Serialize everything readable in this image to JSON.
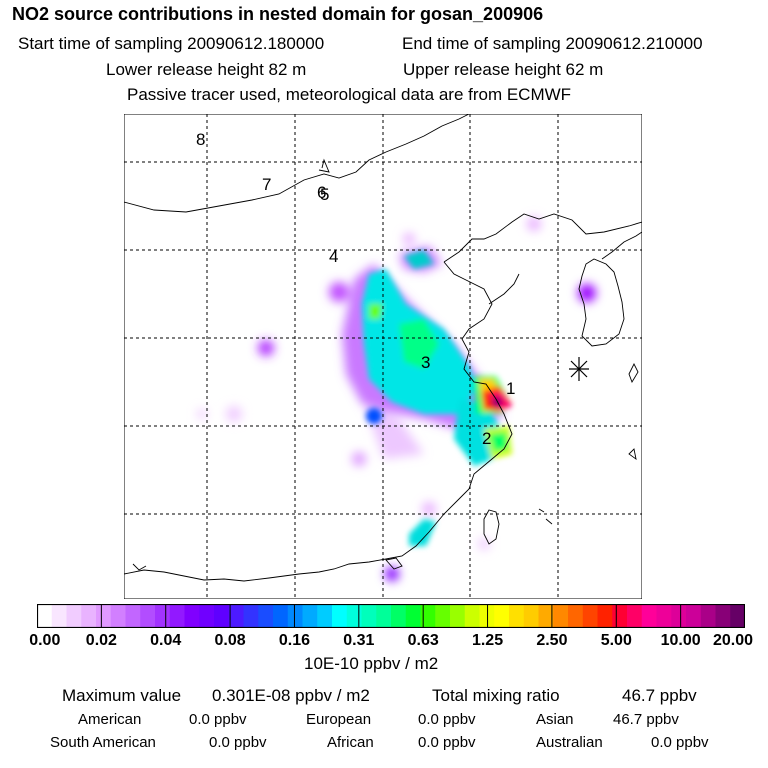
{
  "header": {
    "title": "NO2 source contributions in nested domain for gosan_200906",
    "start_time": "Start time of sampling 20090612.180000",
    "end_time": "End time of sampling 20090612.210000",
    "lower_release": "Lower release height   82 m",
    "upper_release": "Upper release height   62 m",
    "note": "Passive tracer used, meteorological data are from ECMWF"
  },
  "map": {
    "trajectory_labels": [
      "1",
      "2",
      "3",
      "4",
      "5",
      "6",
      "7",
      "8"
    ],
    "receptor": "gosan"
  },
  "colorbar": {
    "ticks": [
      "0.00",
      "0.02",
      "0.04",
      "0.08",
      "0.16",
      "0.31",
      "0.63",
      "1.25",
      "2.50",
      "5.00",
      "10.00",
      "20.00"
    ],
    "colors": [
      "#ffffff",
      "#f9e6ff",
      "#f1ccff",
      "#e9b3ff",
      "#e099ff",
      "#d27fff",
      "#c266ff",
      "#b24dff",
      "#a233ff",
      "#9219ff",
      "#8000ff",
      "#7000ff",
      "#5f00ff",
      "#4d1aff",
      "#3333ff",
      "#1a4dff",
      "#0066ff",
      "#0088ff",
      "#00aaff",
      "#00ccff",
      "#00ffff",
      "#00ffdd",
      "#00ffbb",
      "#00ff99",
      "#00ff66",
      "#00ff33",
      "#33ff00",
      "#66ff00",
      "#99ff00",
      "#ccff00",
      "#eeff00",
      "#ffff00",
      "#ffe000",
      "#ffcc00",
      "#ffaa00",
      "#ff8800",
      "#ff6600",
      "#ff4400",
      "#ff2200",
      "#ff0033",
      "#ff0066",
      "#ff0099",
      "#ee0099",
      "#dd0099",
      "#cc0099",
      "#aa0088",
      "#880077",
      "#660066"
    ],
    "units": "10E-10 ppbv / m2"
  },
  "summary": {
    "max_label": "Maximum value",
    "max_value": "0.301E-08 ppbv / m2",
    "total_label": "Total mixing ratio",
    "total_value": "46.7 ppbv"
  },
  "regions": [
    {
      "name": "American",
      "value": "0.0 ppbv"
    },
    {
      "name": "European",
      "value": "0.0 ppbv"
    },
    {
      "name": "Asian",
      "value": "46.7 ppbv"
    },
    {
      "name": "South American",
      "value": "0.0 ppbv"
    },
    {
      "name": "African",
      "value": "0.0 ppbv"
    },
    {
      "name": "Australian",
      "value": "0.0 ppbv"
    }
  ]
}
